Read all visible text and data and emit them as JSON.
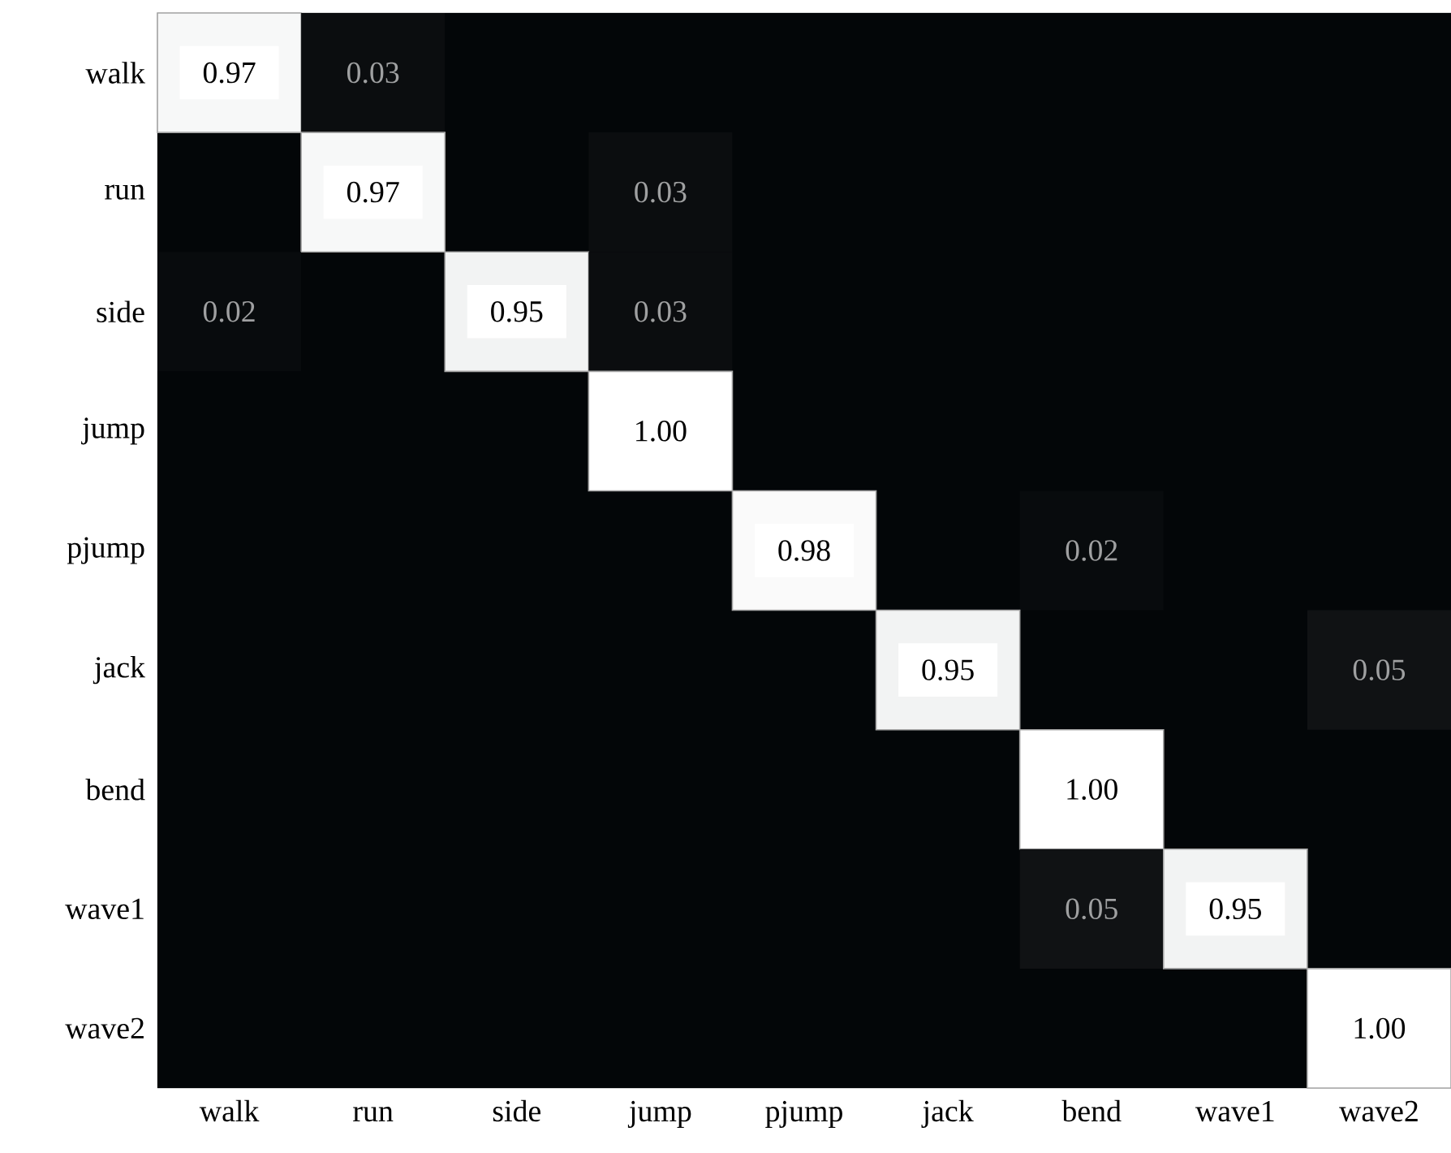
{
  "chart_data": {
    "type": "heatmap",
    "categories": [
      "walk",
      "run",
      "side",
      "jump",
      "pjump",
      "jack",
      "bend",
      "wave1",
      "wave2"
    ],
    "y_categories": [
      "walk",
      "run",
      "side",
      "jump",
      "pjump",
      "jack",
      "bend",
      "wave1",
      "wave2"
    ],
    "cells": [
      [
        0.97,
        0.03,
        null,
        null,
        null,
        null,
        null,
        null,
        null
      ],
      [
        null,
        0.97,
        null,
        0.03,
        null,
        null,
        null,
        null,
        null
      ],
      [
        0.02,
        null,
        0.95,
        0.03,
        null,
        null,
        null,
        null,
        null
      ],
      [
        null,
        null,
        null,
        1.0,
        null,
        null,
        null,
        null,
        null
      ],
      [
        null,
        null,
        null,
        null,
        0.98,
        null,
        0.02,
        null,
        null
      ],
      [
        null,
        null,
        null,
        null,
        null,
        0.95,
        null,
        null,
        0.05
      ],
      [
        null,
        null,
        null,
        null,
        null,
        null,
        1.0,
        null,
        null
      ],
      [
        null,
        null,
        null,
        null,
        null,
        null,
        0.05,
        0.95,
        null
      ],
      [
        null,
        null,
        null,
        null,
        null,
        null,
        null,
        null,
        1.0
      ]
    ],
    "cell_labels": [
      [
        "0.97",
        "0.03",
        null,
        null,
        null,
        null,
        null,
        null,
        null
      ],
      [
        null,
        "0.97",
        null,
        "0.03",
        null,
        null,
        null,
        null,
        null
      ],
      [
        "0.02",
        null,
        "0.95",
        "0.03",
        null,
        null,
        null,
        null,
        null
      ],
      [
        null,
        null,
        null,
        "1.00",
        null,
        null,
        null,
        null,
        null
      ],
      [
        null,
        null,
        null,
        null,
        "0.98",
        null,
        "0.02",
        null,
        null
      ],
      [
        null,
        null,
        null,
        null,
        null,
        "0.95",
        null,
        null,
        "0.05"
      ],
      [
        null,
        null,
        null,
        null,
        null,
        null,
        "1.00",
        null,
        null
      ],
      [
        null,
        null,
        null,
        null,
        null,
        null,
        "0.05",
        "0.95",
        null
      ],
      [
        null,
        null,
        null,
        null,
        null,
        null,
        null,
        null,
        "1.00"
      ]
    ]
  }
}
